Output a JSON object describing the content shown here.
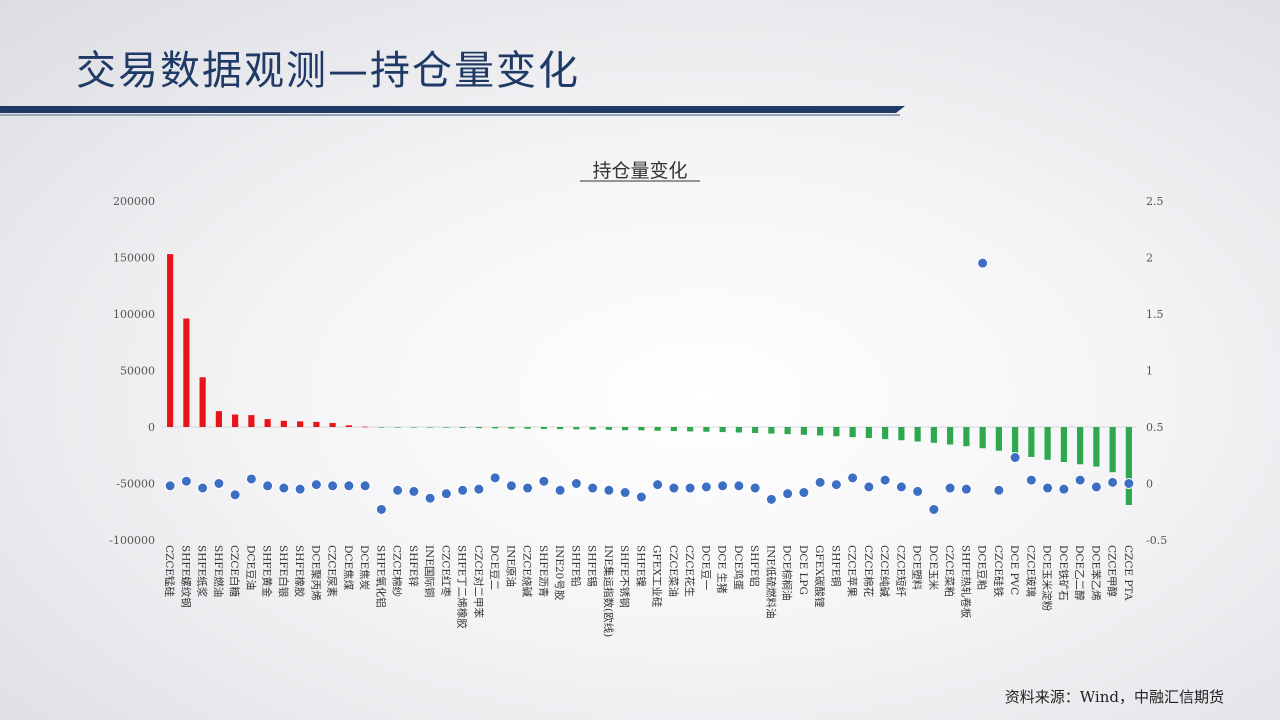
{
  "page": {
    "title": "交易数据观测—持仓量变化",
    "source": "资料来源：Wind，中融汇信期货"
  },
  "colors": {
    "positive": "#e8141b",
    "negative": "#2ea84e",
    "dot": "#3c6fc4",
    "title": "#1f3a66"
  },
  "chart_data": {
    "type": "bar",
    "title": "持仓量变化",
    "y_left_ticks": [
      "200000",
      "150000",
      "100000",
      "50000",
      "0",
      "-50000",
      "-100000"
    ],
    "y_right_ticks": [
      "2.5",
      "2",
      "1.5",
      "1",
      "0.5",
      "0",
      "-0.5"
    ],
    "ylim_left": [
      -100000,
      200000
    ],
    "ylim_right": [
      -0.5,
      2.5
    ],
    "grid": false,
    "legend": "none",
    "categories": [
      "CZCE锰硅",
      "SHFE螺纹钢",
      "SHFE纸浆",
      "SHFE燃油",
      "CZCE白糖",
      "DCE豆油",
      "SHFE黄金",
      "SHFE白银",
      "SHFE橡胶",
      "DCE聚丙烯",
      "CZCE尿素",
      "DCE焦煤",
      "DCE焦炭",
      "SHFE氧化铝",
      "CZCE棉纱",
      "SHFE锌",
      "INE国际铜",
      "CZCE红枣",
      "SHFE丁二烯橡胶",
      "CZCE对二甲苯",
      "DCE豆二",
      "INE原油",
      "CZCE烧碱",
      "SHFE沥青",
      "INE20号胶",
      "SHFE铅",
      "SHFE锡",
      "INE集运指数(欧线)",
      "SHFE不锈钢",
      "SHFE镍",
      "GFEX工业硅",
      "CZCE菜油",
      "CZCE花生",
      "DCE豆一",
      "DCE 生猪",
      "DCE鸡蛋",
      "SHFE铝",
      "INE低硫燃料油",
      "DCE棕榈油",
      "DCE LPG",
      "GFEX碳酸锂",
      "SHFE铜",
      "CZCE苹果",
      "CZCE棉花",
      "CZCE纯碱",
      "CZCE短纤",
      "DCE塑料",
      "DCE玉米",
      "CZCE菜粕",
      "SHFE热轧卷板",
      "DCE豆粕",
      "CZCE硅铁",
      "DCE PVC",
      "CZCE玻璃",
      "DCE玉米淀粉",
      "DCE铁矿石",
      "DCE乙二醇",
      "DCE苯乙烯",
      "CZCE甲醇",
      "CZCE PTA"
    ],
    "series": [
      {
        "type": "bar",
        "axis": "left",
        "values": [
          153000,
          96000,
          44000,
          14000,
          11000,
          10500,
          7000,
          5500,
          5000,
          4500,
          3500,
          1500,
          300,
          -200,
          -300,
          -400,
          -500,
          -600,
          -800,
          -1000,
          -1200,
          -1400,
          -1500,
          -1700,
          -1900,
          -2100,
          -2300,
          -2500,
          -2800,
          -3000,
          -3300,
          -3600,
          -3900,
          -4200,
          -4500,
          -4900,
          -5300,
          -5800,
          -6300,
          -6900,
          -7500,
          -8200,
          -9000,
          -9800,
          -10700,
          -11700,
          -12800,
          -14000,
          -15500,
          -17000,
          -18800,
          -21000,
          -23500,
          -26500,
          -29000,
          -31000,
          -33000,
          -35000,
          -40000,
          -69000
        ]
      },
      {
        "type": "scatter",
        "axis": "right",
        "values": [
          -0.02,
          0.02,
          -0.04,
          0.0,
          -0.1,
          0.04,
          -0.02,
          -0.04,
          -0.05,
          -0.01,
          -0.02,
          -0.02,
          -0.02,
          -0.23,
          -0.06,
          -0.07,
          -0.13,
          -0.09,
          -0.06,
          -0.05,
          0.05,
          -0.02,
          -0.04,
          0.02,
          -0.06,
          0.0,
          -0.04,
          -0.06,
          -0.08,
          -0.12,
          -0.01,
          -0.04,
          -0.04,
          -0.03,
          -0.02,
          -0.02,
          -0.04,
          -0.14,
          -0.09,
          -0.08,
          0.01,
          -0.01,
          0.05,
          -0.03,
          0.03,
          -0.03,
          -0.07,
          -0.23,
          -0.04,
          -0.05,
          1.95,
          -0.06,
          0.23,
          0.03,
          -0.04,
          -0.05,
          0.03,
          -0.03,
          0.01,
          0.0
        ]
      }
    ]
  }
}
